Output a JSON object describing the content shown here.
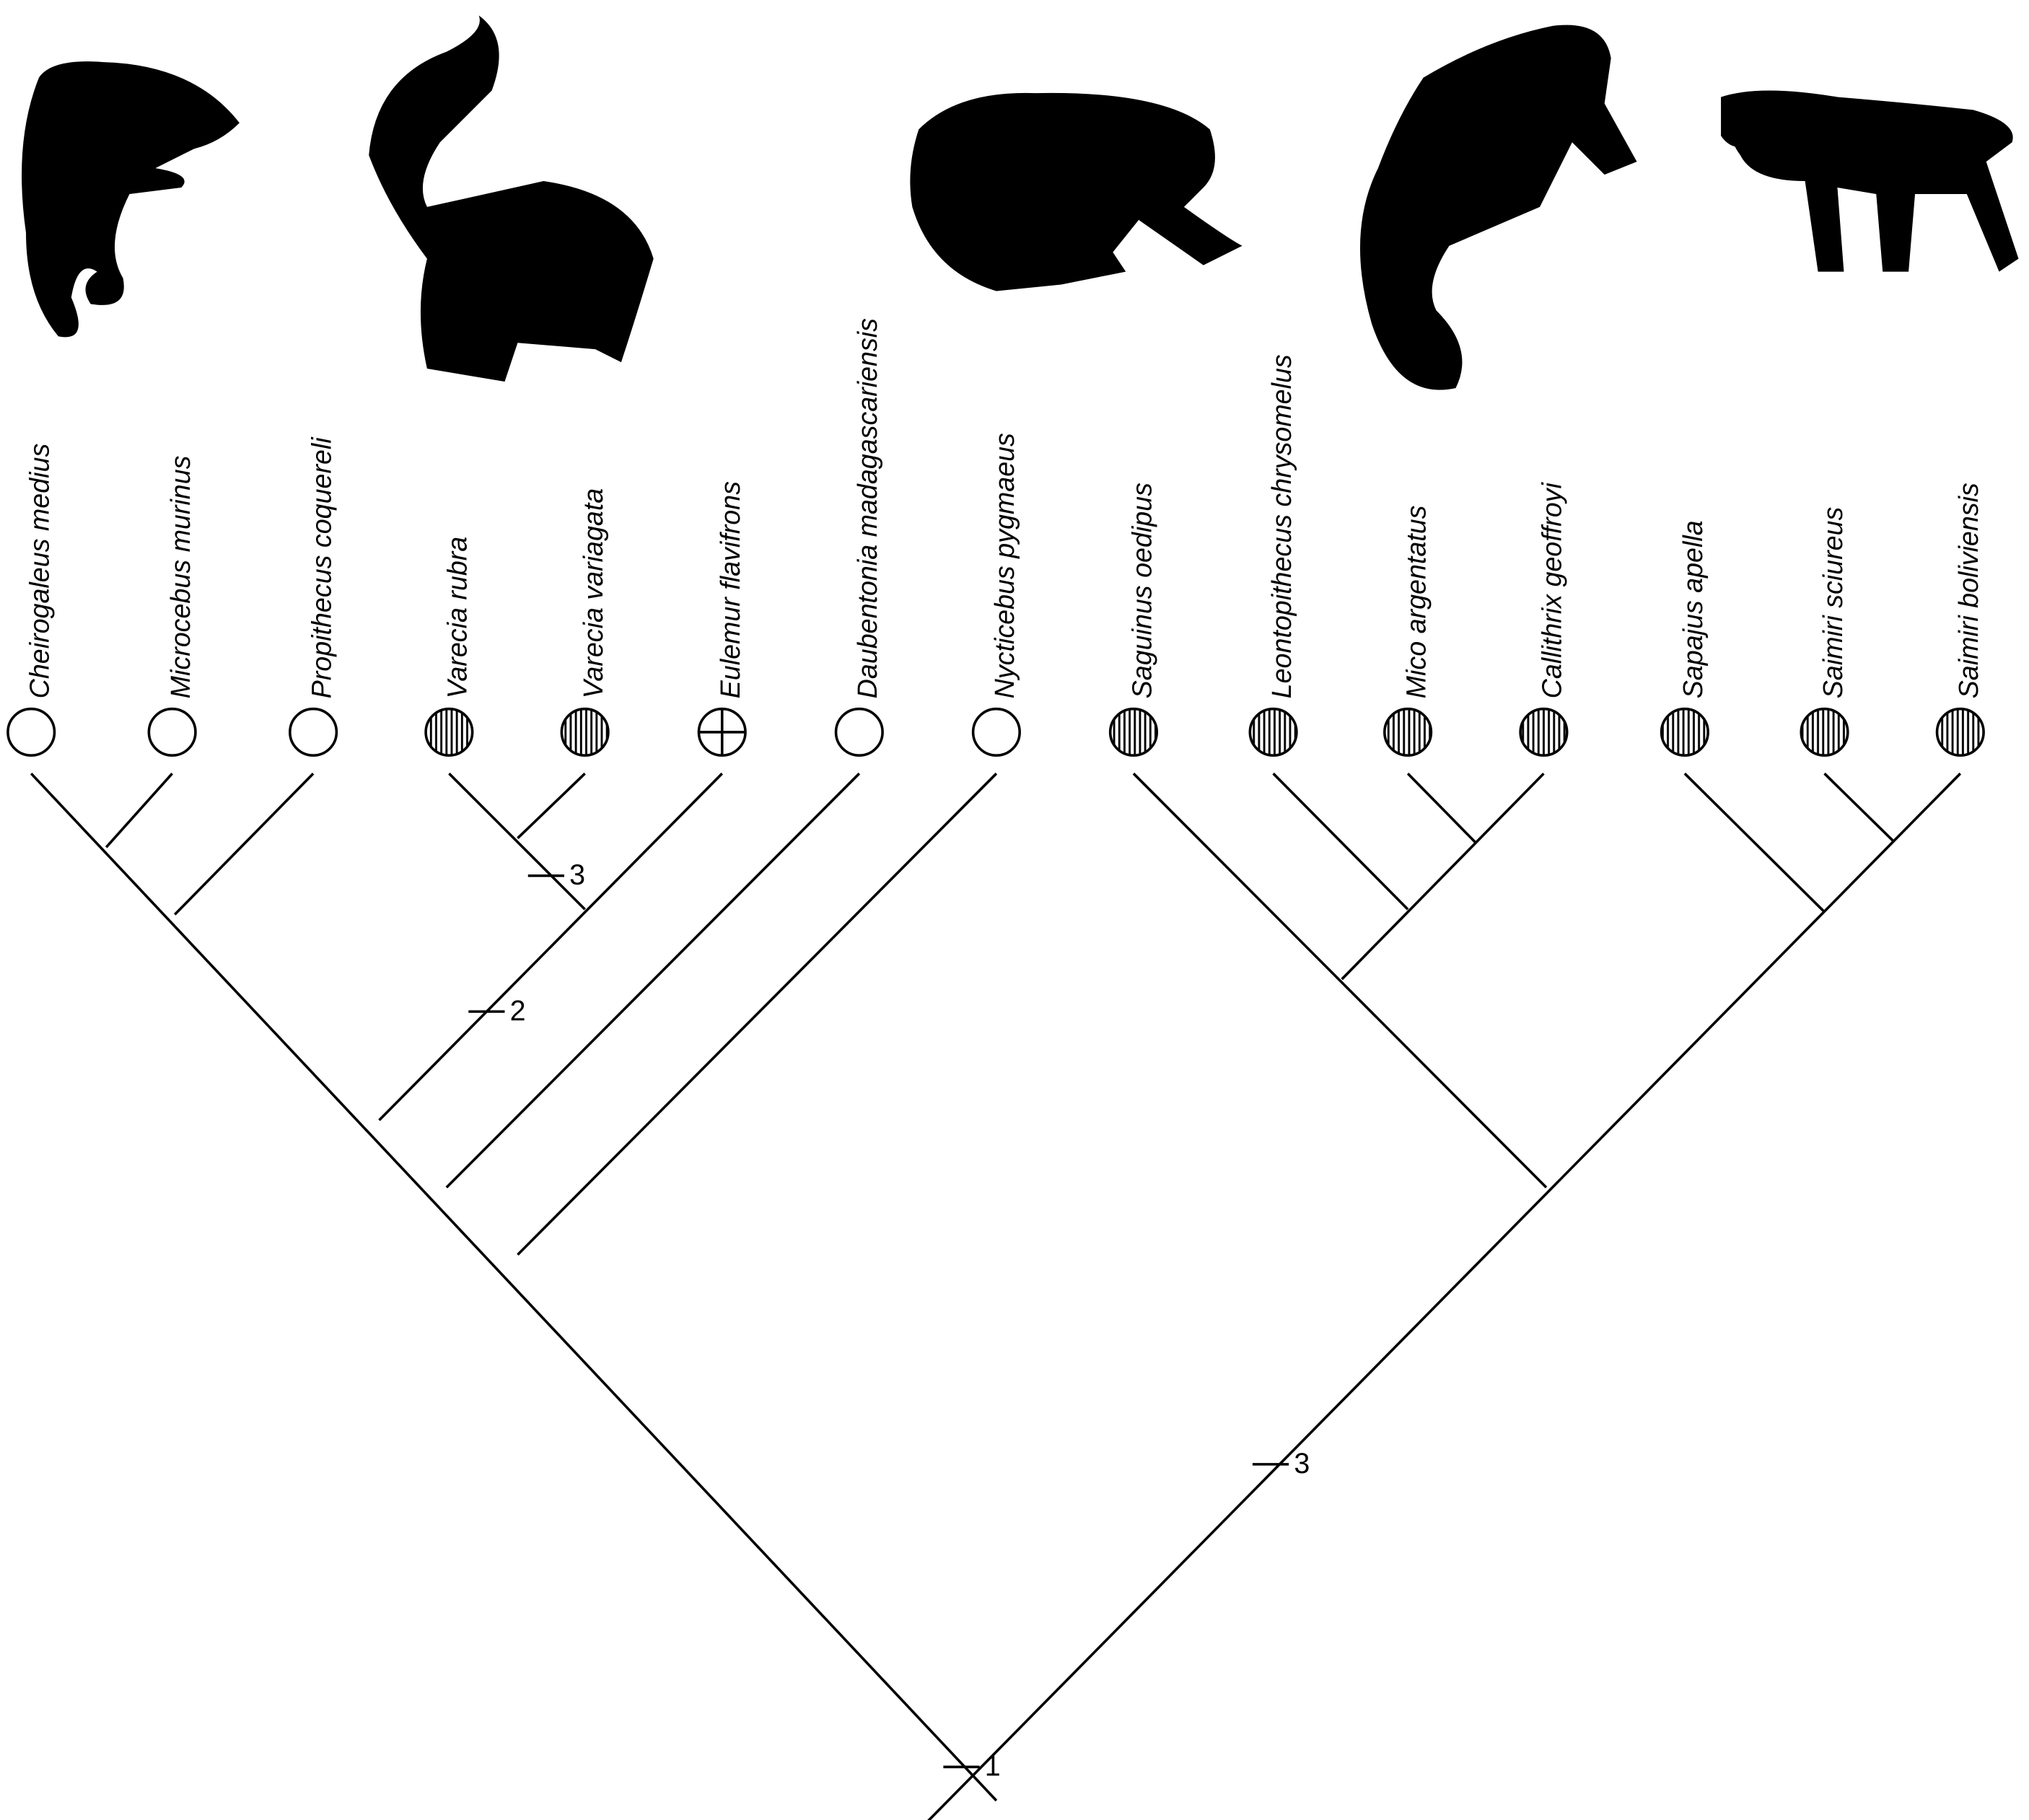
{
  "taxa": [
    {
      "label": "Cheirogaleus medius",
      "symbol": "open"
    },
    {
      "label": "Microcebus murinus",
      "symbol": "open"
    },
    {
      "label": "Propithecus coquereli",
      "symbol": "open"
    },
    {
      "label": "Varecia rubra",
      "symbol": "striped"
    },
    {
      "label": "Varecia variagata",
      "symbol": "striped"
    },
    {
      "label": "Eulemur flavifrons",
      "symbol": "cross"
    },
    {
      "label": "Daubentonia madagascariensis",
      "symbol": "open"
    },
    {
      "label": "Nycticebus pygmaeus",
      "symbol": "open"
    },
    {
      "label": "Saguinus oedipus",
      "symbol": "striped"
    },
    {
      "label": "Leontopithecus chrysomelus",
      "symbol": "striped"
    },
    {
      "label": "Mico argentatus",
      "symbol": "striped"
    },
    {
      "label": "Callithrix geoffroyi",
      "symbol": "striped"
    },
    {
      "label": "Sapajus apella",
      "symbol": "striped"
    },
    {
      "label": "Saimiri sciureus",
      "symbol": "striped"
    },
    {
      "label": "Saimiri boliviensis",
      "symbol": "striped"
    }
  ],
  "markers": [
    "3",
    "2",
    "3",
    "1"
  ]
}
